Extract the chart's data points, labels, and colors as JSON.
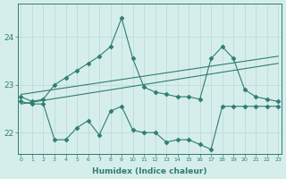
{
  "xlabel": "Humidex (Indice chaleur)",
  "bg_color": "#d6eeeb",
  "grid_color": "#c0dedd",
  "line_color": "#2e7d72",
  "x_ticks": [
    0,
    1,
    2,
    3,
    4,
    5,
    6,
    7,
    8,
    9,
    10,
    11,
    12,
    13,
    14,
    15,
    16,
    17,
    18,
    19,
    20,
    21,
    22,
    23
  ],
  "y_ticks": [
    22,
    23,
    24
  ],
  "ylim": [
    21.55,
    24.7
  ],
  "xlim": [
    -0.3,
    23.3
  ],
  "series": [
    {
      "x": [
        0,
        1,
        2,
        3,
        4,
        5,
        6,
        7,
        8,
        9,
        10,
        11,
        12,
        13,
        14,
        15,
        16,
        17,
        18,
        19,
        20,
        21,
        22,
        23
      ],
      "y": [
        22.75,
        22.65,
        22.7,
        23.0,
        23.15,
        23.3,
        23.45,
        23.6,
        23.8,
        24.4,
        23.55,
        22.95,
        22.85,
        22.8,
        22.75,
        22.75,
        22.7,
        23.55,
        23.8,
        23.55,
        22.9,
        22.75,
        22.7,
        22.65
      ],
      "marker": "D",
      "markersize": 2.5
    },
    {
      "x": [
        0,
        23
      ],
      "y": [
        22.8,
        23.6
      ],
      "marker": null,
      "markersize": 0
    },
    {
      "x": [
        0,
        23
      ],
      "y": [
        22.6,
        23.45
      ],
      "marker": null,
      "markersize": 0
    },
    {
      "x": [
        0,
        1,
        2,
        3,
        4,
        5,
        6,
        7,
        8,
        9,
        10,
        11,
        12,
        13,
        14,
        15,
        16,
        17,
        18,
        19,
        20,
        21,
        22,
        23
      ],
      "y": [
        22.65,
        22.6,
        22.6,
        21.85,
        21.85,
        22.1,
        22.25,
        21.95,
        22.45,
        22.55,
        22.05,
        22.0,
        22.0,
        21.8,
        21.85,
        21.85,
        21.75,
        21.65,
        22.55,
        22.55,
        22.55,
        22.55,
        22.55,
        22.55
      ],
      "marker": "D",
      "markersize": 2.5
    }
  ]
}
